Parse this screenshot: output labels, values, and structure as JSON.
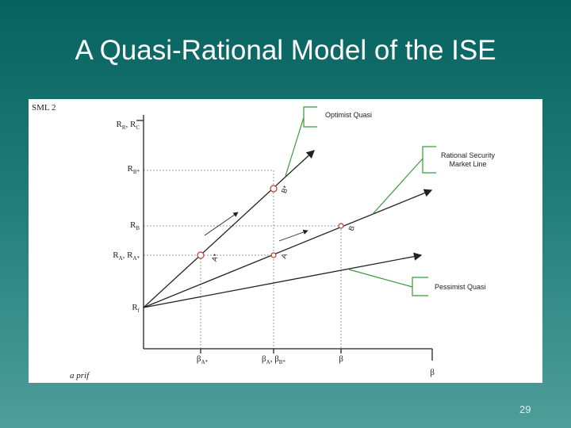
{
  "title": "A Quasi-Rational Model of the ISE",
  "page_number": "29",
  "diagram": {
    "figure_label": "SML  2",
    "footnote": "a prif",
    "y_labels": [
      [
        {
          "base": "R",
          "sub": "R"
        },
        {
          "base": ", R",
          "sub": "C"
        }
      ],
      [
        {
          "base": "R",
          "sub": "B*"
        }
      ],
      [
        {
          "base": "R",
          "sub": "B"
        }
      ],
      [
        {
          "base": "R",
          "sub": "A"
        },
        {
          "base": ", R",
          "sub": "A*"
        }
      ],
      [
        {
          "base": "R",
          "sub": "f"
        }
      ]
    ],
    "x_labels": [
      [
        {
          "base": "β",
          "sub": "A*"
        }
      ],
      [
        {
          "base": "β",
          "sub": "A"
        },
        {
          "base": ", β",
          "sub": "B*"
        }
      ],
      [
        {
          "base": "β"
        }
      ]
    ],
    "x_axis_label": "β",
    "point_labels": [
      "B*",
      "B",
      "A*",
      "A"
    ],
    "callouts": {
      "optimist": [
        "Optimist Quasi"
      ],
      "rational": [
        "Rational Security",
        "Market Line"
      ],
      "pessimist": [
        "Pessimist Quasi"
      ]
    }
  }
}
